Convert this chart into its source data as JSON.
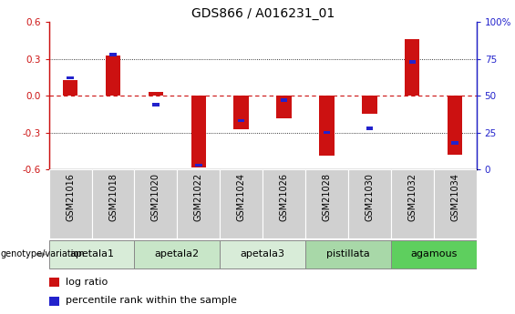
{
  "title": "GDS866 / A016231_01",
  "samples": [
    "GSM21016",
    "GSM21018",
    "GSM21020",
    "GSM21022",
    "GSM21024",
    "GSM21026",
    "GSM21028",
    "GSM21030",
    "GSM21032",
    "GSM21034"
  ],
  "log_ratio": [
    0.13,
    0.33,
    0.03,
    -0.58,
    -0.27,
    -0.18,
    -0.49,
    -0.15,
    0.46,
    -0.48
  ],
  "percentile_rank": [
    62,
    78,
    44,
    3,
    33,
    47,
    25,
    28,
    73,
    18
  ],
  "ylim": [
    -0.6,
    0.6
  ],
  "yticks_left": [
    -0.6,
    -0.3,
    0.0,
    0.3,
    0.6
  ],
  "yticks_right": [
    0,
    25,
    50,
    75,
    100
  ],
  "groups": [
    {
      "label": "apetala1",
      "samples": [
        "GSM21016",
        "GSM21018"
      ],
      "color": "#d8ecd8"
    },
    {
      "label": "apetala2",
      "samples": [
        "GSM21020",
        "GSM21022"
      ],
      "color": "#c8e6c8"
    },
    {
      "label": "apetala3",
      "samples": [
        "GSM21024",
        "GSM21026"
      ],
      "color": "#d8ecd8"
    },
    {
      "label": "pistillata",
      "samples": [
        "GSM21028",
        "GSM21030"
      ],
      "color": "#a8d8a8"
    },
    {
      "label": "agamous",
      "samples": [
        "GSM21032",
        "GSM21034"
      ],
      "color": "#5ecf5e"
    }
  ],
  "bar_color": "#cc1111",
  "percentile_color": "#2222cc",
  "zero_line_color": "#cc1111",
  "grid_color": "#222222",
  "sample_box_color": "#d0d0d0",
  "title_fontsize": 10,
  "bar_width": 0.35,
  "genotype_label": "genotype/variation",
  "legend_items": [
    {
      "color": "#cc1111",
      "label": "log ratio"
    },
    {
      "color": "#2222cc",
      "label": "percentile rank within the sample"
    }
  ]
}
